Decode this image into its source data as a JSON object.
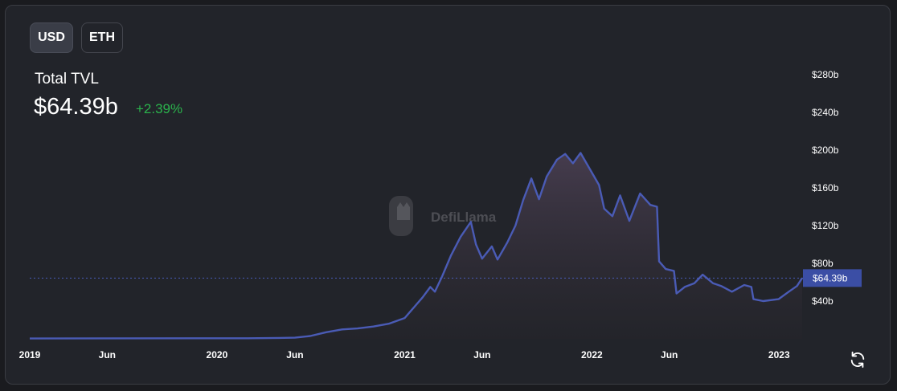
{
  "currency_toggle": {
    "usd_label": "USD",
    "eth_label": "ETH",
    "selected": "USD"
  },
  "header": {
    "title": "Total TVL",
    "value": "$64.39b",
    "change": "+2.39%"
  },
  "watermark": "DefiLlama",
  "colors": {
    "line": "#4a5bb5",
    "change_positive": "#2bb24c",
    "current_label_bg": "#3b4ea5"
  },
  "icons": {
    "reload": "refresh-icon",
    "watermark_logo": "llama-logo-icon"
  },
  "chart_data": {
    "type": "area",
    "title": "Total TVL",
    "xlabel": "",
    "ylabel": "",
    "ylim": [
      0,
      300
    ],
    "y_ticks": [
      40,
      80,
      120,
      160,
      200,
      240,
      280
    ],
    "y_tick_labels": [
      "$40b",
      "$80b",
      "$120b",
      "$160b",
      "$200b",
      "$240b",
      "$280b"
    ],
    "x_ticks": [
      {
        "x": "2019-01-01",
        "label": "2019"
      },
      {
        "x": "2019-06-01",
        "label": "Jun"
      },
      {
        "x": "2020-01-01",
        "label": "2020"
      },
      {
        "x": "2020-06-01",
        "label": "Jun"
      },
      {
        "x": "2021-01-01",
        "label": "2021"
      },
      {
        "x": "2021-06-01",
        "label": "Jun"
      },
      {
        "x": "2022-01-01",
        "label": "2022"
      },
      {
        "x": "2022-06-01",
        "label": "Jun"
      },
      {
        "x": "2023-01-01",
        "label": "2023"
      }
    ],
    "current_value": 64.39,
    "current_label": "$64.39b",
    "grid": false,
    "series": [
      {
        "unit": "billion USD",
        "points": [
          [
            "2019-01-01",
            0.3
          ],
          [
            "2019-06-01",
            0.5
          ],
          [
            "2019-12-01",
            0.6
          ],
          [
            "2020-03-01",
            0.6
          ],
          [
            "2020-05-01",
            0.9
          ],
          [
            "2020-06-01",
            1.2
          ],
          [
            "2020-07-01",
            3
          ],
          [
            "2020-08-01",
            7
          ],
          [
            "2020-09-01",
            10
          ],
          [
            "2020-10-01",
            11
          ],
          [
            "2020-11-01",
            13
          ],
          [
            "2020-12-01",
            16
          ],
          [
            "2021-01-01",
            22
          ],
          [
            "2021-01-20",
            34
          ],
          [
            "2021-02-05",
            44
          ],
          [
            "2021-02-20",
            55
          ],
          [
            "2021-03-01",
            50
          ],
          [
            "2021-03-15",
            66
          ],
          [
            "2021-04-01",
            88
          ],
          [
            "2021-04-20",
            108
          ],
          [
            "2021-05-10",
            124
          ],
          [
            "2021-05-20",
            100
          ],
          [
            "2021-06-01",
            85
          ],
          [
            "2021-06-20",
            98
          ],
          [
            "2021-07-01",
            84
          ],
          [
            "2021-07-20",
            102
          ],
          [
            "2021-08-05",
            120
          ],
          [
            "2021-08-20",
            147
          ],
          [
            "2021-09-05",
            170
          ],
          [
            "2021-09-20",
            148
          ],
          [
            "2021-10-05",
            172
          ],
          [
            "2021-10-25",
            190
          ],
          [
            "2021-11-10",
            196
          ],
          [
            "2021-11-25",
            186
          ],
          [
            "2021-12-10",
            197
          ],
          [
            "2021-12-28",
            180
          ],
          [
            "2022-01-15",
            163
          ],
          [
            "2022-01-25",
            138
          ],
          [
            "2022-02-10",
            130
          ],
          [
            "2022-02-25",
            152
          ],
          [
            "2022-03-15",
            125
          ],
          [
            "2022-04-05",
            154
          ],
          [
            "2022-04-25",
            142
          ],
          [
            "2022-05-08",
            140
          ],
          [
            "2022-05-12",
            82
          ],
          [
            "2022-05-25",
            74
          ],
          [
            "2022-06-10",
            72
          ],
          [
            "2022-06-15",
            48
          ],
          [
            "2022-07-01",
            55
          ],
          [
            "2022-07-20",
            59
          ],
          [
            "2022-08-05",
            68
          ],
          [
            "2022-08-25",
            59
          ],
          [
            "2022-09-10",
            56
          ],
          [
            "2022-10-01",
            50
          ],
          [
            "2022-10-25",
            57
          ],
          [
            "2022-11-08",
            55
          ],
          [
            "2022-11-12",
            42
          ],
          [
            "2022-12-01",
            40
          ],
          [
            "2022-12-31",
            42
          ],
          [
            "2023-01-20",
            50
          ],
          [
            "2023-02-05",
            56
          ],
          [
            "2023-02-15",
            64.39
          ]
        ]
      }
    ]
  }
}
